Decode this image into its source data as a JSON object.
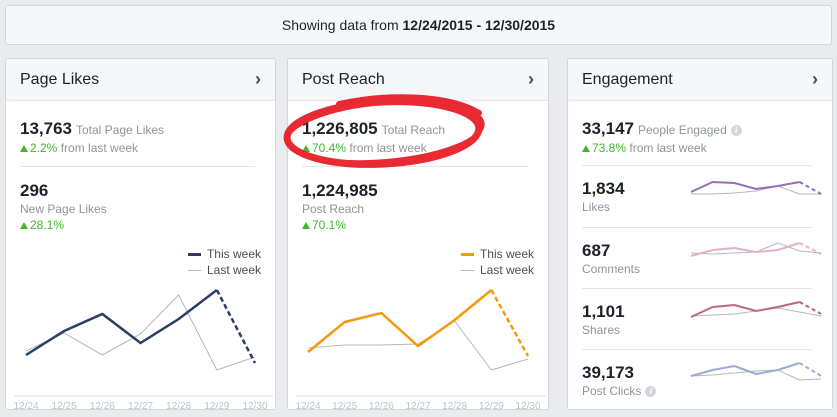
{
  "header": {
    "prefix": "Showing data from",
    "range": "12/24/2015 - 12/30/2015"
  },
  "colors": {
    "page_likes_this": "#2d3d63",
    "post_reach_this": "#f39a0b",
    "last_week": "#b4b7bd",
    "positive": "#42b72a",
    "likes": "#9470b9",
    "comments": "#e0b3cc",
    "shares": "#bb6689",
    "clicks": "#9aabd4",
    "annotation": "#e8141e"
  },
  "cards": {
    "page_likes": {
      "title": "Page Likes",
      "total": "13,763",
      "total_label": "Total Page Likes",
      "change": "2.2%",
      "change_suffix": "from last week",
      "new": "296",
      "new_label": "New Page Likes",
      "new_change": "28.1%"
    },
    "post_reach": {
      "title": "Post Reach",
      "total": "1,226,805",
      "total_label": "Total Reach",
      "change": "70.4%",
      "change_suffix": "from last week",
      "post": "1,224,985",
      "post_label": "Post Reach",
      "post_change": "70.1%"
    },
    "engagement": {
      "title": "Engagement",
      "total": "33,147",
      "total_label": "People Engaged",
      "change": "73.8%",
      "change_suffix": "from last week",
      "rows": [
        {
          "value": "1,834",
          "label": "Likes",
          "color_key": "likes",
          "this_week": [
            8,
            18,
            17,
            11,
            14,
            18,
            6
          ],
          "last_week": [
            6,
            6,
            7,
            9,
            14,
            6,
            6
          ]
        },
        {
          "value": "687",
          "label": "Comments",
          "color_key": "comments",
          "this_week": [
            6,
            12,
            14,
            10,
            12,
            19,
            8
          ],
          "last_week": [
            9,
            8,
            9,
            10,
            19,
            11,
            9
          ]
        },
        {
          "value": "1,101",
          "label": "Shares",
          "color_key": "shares",
          "this_week": [
            6,
            16,
            18,
            12,
            16,
            21,
            9
          ],
          "last_week": [
            7,
            8,
            9,
            12,
            15,
            11,
            7
          ]
        },
        {
          "value": "39,173",
          "label": "Post Clicks",
          "color_key": "clicks",
          "this_week": [
            8,
            14,
            18,
            10,
            14,
            21,
            8
          ],
          "last_week": [
            8,
            9,
            11,
            13,
            14,
            4,
            5
          ]
        }
      ]
    }
  },
  "legend": {
    "this_week": "This week",
    "last_week": "Last week"
  },
  "chart_data": [
    {
      "type": "line",
      "chart": "Page Likes",
      "categories": [
        "12/24",
        "12/25",
        "12/26",
        "12/27",
        "12/28",
        "12/29",
        "12/30"
      ],
      "series": [
        {
          "name": "This week",
          "values": [
            36,
            60,
            77,
            48,
            72,
            101,
            28
          ]
        },
        {
          "name": "Last week",
          "values": [
            40,
            58,
            36,
            57,
            96,
            21,
            34
          ]
        }
      ],
      "grid": false,
      "legend": "top-right",
      "note_last_segment": "dashed"
    },
    {
      "type": "line",
      "chart": "Post Reach",
      "categories": [
        "12/24",
        "12/25",
        "12/26",
        "12/27",
        "12/28",
        "12/29",
        "12/30"
      ],
      "series": [
        {
          "name": "This week",
          "values": [
            39,
            69,
            78,
            45,
            71,
            101,
            35
          ]
        },
        {
          "name": "Last week",
          "values": [
            43,
            46,
            46,
            47,
            70,
            21,
            32
          ]
        }
      ],
      "grid": false,
      "legend": "top-right",
      "note_last_segment": "dashed"
    }
  ]
}
